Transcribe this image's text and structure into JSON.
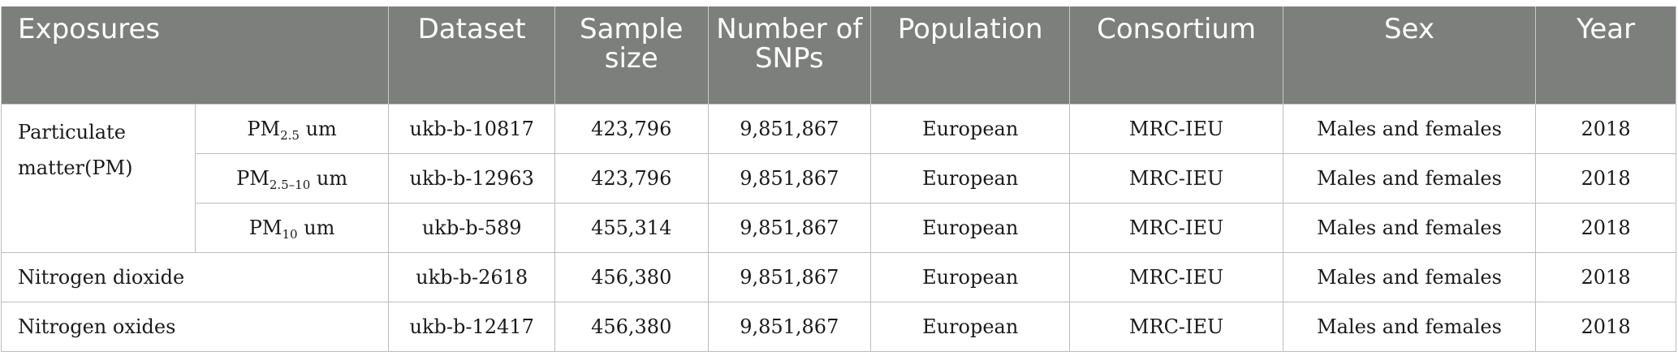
{
  "headers": {
    "exposures": "Exposures",
    "dataset": "Dataset",
    "sample_size": "Sample size",
    "num_snps": "Number of SNPs",
    "population": "Population",
    "consortium": "Consortium",
    "sex": "Sex",
    "year": "Year"
  },
  "group": {
    "label": "Particulate matter(PM)"
  },
  "rows": [
    {
      "sub_main": "PM",
      "sub_sub": "2.5",
      "sub_unit": " um",
      "dataset": "ukb-b-10817",
      "sample_size": "423,796",
      "snps": "9,851,867",
      "population": "European",
      "consortium": "MRC-IEU",
      "sex": "Males and females",
      "year": "2018"
    },
    {
      "sub_main": "PM",
      "sub_sub": "2.5–10",
      "sub_unit": " um",
      "dataset": "ukb-b-12963",
      "sample_size": "423,796",
      "snps": "9,851,867",
      "population": "European",
      "consortium": "MRC-IEU",
      "sex": "Males and females",
      "year": "2018"
    },
    {
      "sub_main": "PM",
      "sub_sub": "10",
      "sub_unit": " um",
      "dataset": "ukb-b-589",
      "sample_size": "455,314",
      "snps": "9,851,867",
      "population": "European",
      "consortium": "MRC-IEU",
      "sex": "Males and females",
      "year": "2018"
    },
    {
      "exposure": "Nitrogen dioxide",
      "dataset": "ukb-b-2618",
      "sample_size": "456,380",
      "snps": "9,851,867",
      "population": "European",
      "consortium": "MRC-IEU",
      "sex": "Males and females",
      "year": "2018"
    },
    {
      "exposure": "Nitrogen oxides",
      "dataset": "ukb-b-12417",
      "sample_size": "456,380",
      "snps": "9,851,867",
      "population": "European",
      "consortium": "MRC-IEU",
      "sex": "Males and females",
      "year": "2018"
    }
  ]
}
